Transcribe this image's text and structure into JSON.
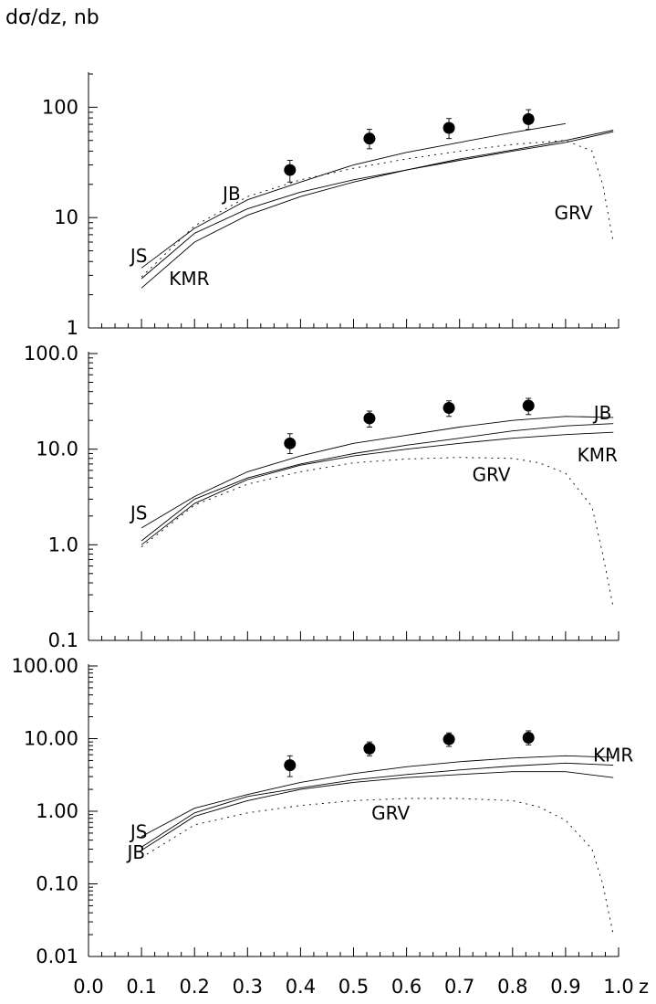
{
  "y_axis_label": "dσ/dz, nb",
  "x_axis_label": "z",
  "chart_data": [
    {
      "type": "line",
      "panel": "top",
      "ylabel": "dσ/dz, nb",
      "yscale": "log",
      "ylim": [
        1,
        200
      ],
      "y_ticks": [
        {
          "value": 1,
          "label": "1"
        },
        {
          "value": 10,
          "label": "10"
        },
        {
          "value": 100,
          "label": "100"
        }
      ],
      "xlim": [
        0.0,
        1.0
      ],
      "series": [
        {
          "name": "JS",
          "style": "solid",
          "label_pos": [
            0.095,
            4.5
          ],
          "x": [
            0.1,
            0.2,
            0.3,
            0.4,
            0.5,
            0.6,
            0.7,
            0.8,
            0.9
          ],
          "values": [
            3.5,
            8.0,
            14.5,
            21.0,
            30.0,
            39.0,
            48.0,
            59.0,
            71.0
          ]
        },
        {
          "name": "JB",
          "style": "solid",
          "label_pos": [
            0.27,
            16.5
          ],
          "x": [
            0.1,
            0.2,
            0.3,
            0.4,
            0.5,
            0.6,
            0.7,
            0.8,
            0.9,
            0.99
          ],
          "values": [
            2.8,
            7.2,
            12.0,
            17.0,
            22.0,
            27.0,
            33.0,
            40.0,
            48.0,
            60.0
          ]
        },
        {
          "name": "KMR",
          "style": "solid",
          "label_pos": [
            0.19,
            2.8
          ],
          "x": [
            0.1,
            0.2,
            0.3,
            0.4,
            0.5,
            0.6,
            0.7,
            0.8,
            0.9,
            0.99
          ],
          "values": [
            2.3,
            6.0,
            10.5,
            15.5,
            21.0,
            27.0,
            34.0,
            41.0,
            50.0,
            62.0
          ]
        },
        {
          "name": "GRV",
          "style": "dotted",
          "label_pos": [
            0.915,
            11.0
          ],
          "x": [
            0.1,
            0.2,
            0.3,
            0.4,
            0.5,
            0.6,
            0.7,
            0.8,
            0.9,
            0.95,
            0.97,
            0.99
          ],
          "values": [
            2.9,
            8.4,
            15.5,
            22.0,
            28.0,
            34.0,
            40.0,
            46.0,
            50.0,
            40.0,
            20.0,
            6.0
          ]
        }
      ],
      "points": [
        {
          "x": 0.38,
          "y": 27.0,
          "lo": 21.0,
          "hi": 33.0
        },
        {
          "x": 0.53,
          "y": 52.0,
          "lo": 42.0,
          "hi": 63.0
        },
        {
          "x": 0.68,
          "y": 65.0,
          "lo": 52.0,
          "hi": 79.0
        },
        {
          "x": 0.83,
          "y": 78.0,
          "lo": 63.0,
          "hi": 95.0
        }
      ]
    },
    {
      "type": "line",
      "panel": "middle",
      "ylabel": "",
      "yscale": "log",
      "ylim": [
        0.1,
        100
      ],
      "y_ticks": [
        {
          "value": 0.1,
          "label": "0.1"
        },
        {
          "value": 1.0,
          "label": "1.0"
        },
        {
          "value": 10.0,
          "label": "10.0"
        },
        {
          "value": 100.0,
          "label": "100.0"
        }
      ],
      "xlim": [
        0.0,
        1.0
      ],
      "series": [
        {
          "name": "JS",
          "style": "solid",
          "label_pos": [
            0.095,
            2.15
          ],
          "x": [
            0.1,
            0.2,
            0.3,
            0.4,
            0.5,
            0.6,
            0.7,
            0.8,
            0.9,
            0.99
          ],
          "values": [
            1.5,
            3.2,
            5.8,
            8.5,
            11.5,
            14.0,
            17.0,
            20.0,
            22.0,
            21.5
          ]
        },
        {
          "name": "JB",
          "style": "solid",
          "label_pos": [
            0.97,
            24.0
          ],
          "x": [
            0.1,
            0.2,
            0.3,
            0.4,
            0.5,
            0.6,
            0.7,
            0.8,
            0.9,
            0.99
          ],
          "values": [
            1.1,
            3.0,
            5.0,
            7.0,
            9.0,
            11.0,
            13.0,
            15.5,
            17.5,
            18.5
          ]
        },
        {
          "name": "KMR",
          "style": "solid",
          "label_pos": [
            0.96,
            8.7
          ],
          "x": [
            0.1,
            0.2,
            0.3,
            0.4,
            0.5,
            0.6,
            0.7,
            0.8,
            0.9,
            0.99
          ],
          "values": [
            1.0,
            2.7,
            4.8,
            6.8,
            8.5,
            10.0,
            11.5,
            13.0,
            14.2,
            15.0
          ]
        },
        {
          "name": "GRV",
          "style": "dotted",
          "label_pos": [
            0.76,
            5.4
          ],
          "x": [
            0.1,
            0.2,
            0.3,
            0.4,
            0.5,
            0.6,
            0.7,
            0.8,
            0.85,
            0.9,
            0.95,
            0.97,
            0.99
          ],
          "values": [
            0.95,
            2.6,
            4.3,
            5.8,
            7.2,
            7.9,
            8.2,
            8.0,
            7.2,
            5.6,
            2.5,
            0.8,
            0.22
          ]
        }
      ],
      "points": [
        {
          "x": 0.38,
          "y": 11.5,
          "lo": 9.0,
          "hi": 14.5
        },
        {
          "x": 0.53,
          "y": 21.0,
          "lo": 17.0,
          "hi": 25.0
        },
        {
          "x": 0.68,
          "y": 27.0,
          "lo": 22.0,
          "hi": 32.0
        },
        {
          "x": 0.83,
          "y": 28.5,
          "lo": 23.0,
          "hi": 34.0
        }
      ]
    },
    {
      "type": "line",
      "panel": "bottom",
      "ylabel": "",
      "yscale": "log",
      "ylim": [
        0.01,
        100
      ],
      "y_ticks": [
        {
          "value": 0.01,
          "label": "0.01"
        },
        {
          "value": 0.1,
          "label": "0.10"
        },
        {
          "value": 1.0,
          "label": "1.00"
        },
        {
          "value": 10.0,
          "label": "10.00"
        },
        {
          "value": 100.0,
          "label": "100.00"
        }
      ],
      "xlim": [
        0.0,
        1.0
      ],
      "x_ticks": [
        {
          "value": 0.0,
          "label": "0.0"
        },
        {
          "value": 0.1,
          "label": "0.1"
        },
        {
          "value": 0.2,
          "label": "0.2"
        },
        {
          "value": 0.3,
          "label": "0.3"
        },
        {
          "value": 0.4,
          "label": "0.4"
        },
        {
          "value": 0.5,
          "label": "0.5"
        },
        {
          "value": 0.6,
          "label": "0.6"
        },
        {
          "value": 0.7,
          "label": "0.7"
        },
        {
          "value": 0.8,
          "label": "0.8"
        },
        {
          "value": 0.9,
          "label": "0.9"
        },
        {
          "value": 1.0,
          "label": "1.0"
        }
      ],
      "series": [
        {
          "name": "JS",
          "style": "solid",
          "label_pos": [
            0.095,
            0.52
          ],
          "x": [
            0.1,
            0.2,
            0.3,
            0.4,
            0.5,
            0.6,
            0.7,
            0.8,
            0.9,
            0.99
          ],
          "values": [
            0.45,
            1.1,
            1.7,
            2.5,
            3.3,
            4.1,
            4.8,
            5.4,
            5.8,
            5.5
          ]
        },
        {
          "name": "KMR",
          "style": "solid",
          "label_pos": [
            0.99,
            5.9
          ],
          "x": [
            0.1,
            0.2,
            0.3,
            0.4,
            0.5,
            0.6,
            0.7,
            0.8,
            0.9,
            0.99
          ],
          "values": [
            0.32,
            0.95,
            1.6,
            2.1,
            2.7,
            3.2,
            3.7,
            4.2,
            4.6,
            4.3
          ]
        },
        {
          "name": "JB",
          "style": "solid",
          "label_pos": [
            0.09,
            0.27
          ],
          "x": [
            0.1,
            0.2,
            0.3,
            0.4,
            0.5,
            0.6,
            0.7,
            0.8,
            0.9,
            0.99
          ],
          "values": [
            0.29,
            0.85,
            1.4,
            2.0,
            2.5,
            2.9,
            3.2,
            3.5,
            3.5,
            2.9
          ]
        },
        {
          "name": "GRV",
          "style": "dotted",
          "label_pos": [
            0.57,
            0.94
          ],
          "x": [
            0.1,
            0.2,
            0.3,
            0.4,
            0.5,
            0.6,
            0.7,
            0.8,
            0.85,
            0.9,
            0.95,
            0.97,
            0.99
          ],
          "values": [
            0.23,
            0.65,
            0.95,
            1.2,
            1.4,
            1.5,
            1.5,
            1.4,
            1.15,
            0.75,
            0.3,
            0.1,
            0.02
          ]
        }
      ],
      "points": [
        {
          "x": 0.38,
          "y": 4.3,
          "lo": 3.0,
          "hi": 5.8
        },
        {
          "x": 0.53,
          "y": 7.3,
          "lo": 5.8,
          "hi": 9.0
        },
        {
          "x": 0.68,
          "y": 9.8,
          "lo": 7.8,
          "hi": 12.0
        },
        {
          "x": 0.83,
          "y": 10.3,
          "lo": 8.2,
          "hi": 12.8
        }
      ]
    }
  ]
}
